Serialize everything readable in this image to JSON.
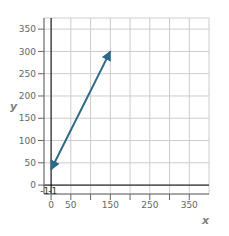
{
  "chart_data": {
    "type": "line",
    "xlabel": "x",
    "ylabel": "y",
    "x": [
      0,
      150
    ],
    "values": [
      35,
      300
    ],
    "color": "#2D6A8A",
    "marker": "arrow",
    "xlim": [
      -18,
      400
    ],
    "ylim": [
      -20,
      375
    ],
    "xticks": [
      0,
      50,
      {
        "value": 100,
        "label": null
      },
      150,
      {
        "value": 200,
        "label": null
      },
      250,
      {
        "value": 300,
        "label": null
      },
      350
    ],
    "yticks": [
      0,
      50,
      100,
      150,
      200,
      250,
      300,
      350
    ],
    "grid": true,
    "annotations": [
      {
        "text": "-1",
        "x": -16,
        "y": -13
      },
      {
        "text": "-1",
        "x": 4,
        "y": -13
      }
    ]
  }
}
